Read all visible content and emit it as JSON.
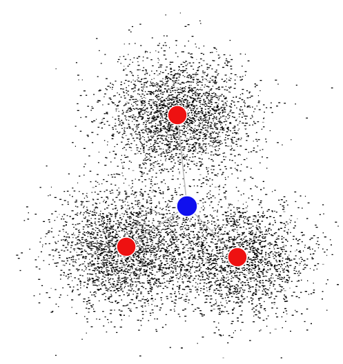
{
  "graph": {
    "center_node": {
      "color": "#1010ee"
    },
    "outer_nodes": [
      {
        "color": "#ee1111"
      },
      {
        "color": "#ee1111"
      },
      {
        "color": "#ee1111"
      }
    ],
    "edge_color": "#bdbdbd",
    "point_color": "#000000",
    "stray_point_color": "#9a9a9a",
    "background": "#ffffff"
  }
}
